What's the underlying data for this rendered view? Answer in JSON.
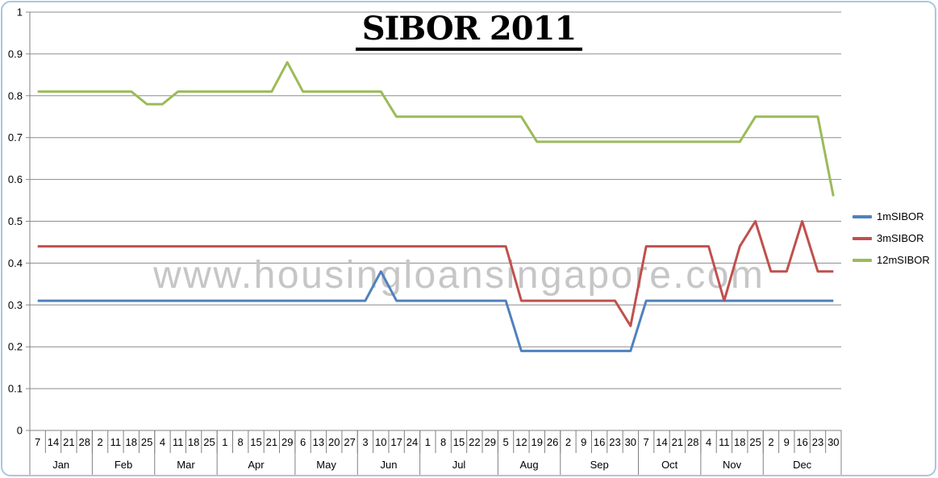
{
  "title": "SIBOR 2011",
  "watermark": "www.housingloansingapore.com",
  "colors": {
    "grid": "#8c8c8c",
    "axis": "#808080",
    "border": "#a9c6e0",
    "text": "#000000",
    "watermark": "#c6c6c6"
  },
  "chart_data": {
    "type": "line",
    "title": "SIBOR 2011",
    "xlabel": "",
    "ylabel": "",
    "ylim": [
      0,
      1
    ],
    "ytick_interval": 0.1,
    "yticks": [
      "1",
      "0.9",
      "0.8",
      "0.7",
      "0.6",
      "0.5",
      "0.4",
      "0.3",
      "0.2",
      "0.1",
      "0"
    ],
    "grid": true,
    "legend_position": "right",
    "months": [
      {
        "label": "Jan",
        "dates": [
          "7",
          "14",
          "21",
          "28"
        ]
      },
      {
        "label": "Feb",
        "dates": [
          "2",
          "11",
          "18",
          "25"
        ]
      },
      {
        "label": "Mar",
        "dates": [
          "4",
          "11",
          "18",
          "25"
        ]
      },
      {
        "label": "Apr",
        "dates": [
          "1",
          "8",
          "15",
          "21",
          "29"
        ]
      },
      {
        "label": "May",
        "dates": [
          "6",
          "13",
          "20",
          "27"
        ]
      },
      {
        "label": "Jun",
        "dates": [
          "3",
          "10",
          "17",
          "24"
        ]
      },
      {
        "label": "Jul",
        "dates": [
          "1",
          "8",
          "15",
          "22",
          "29"
        ]
      },
      {
        "label": "Aug",
        "dates": [
          "5",
          "12",
          "19",
          "26"
        ]
      },
      {
        "label": "Sep",
        "dates": [
          "2",
          "9",
          "16",
          "23",
          "30"
        ]
      },
      {
        "label": "Oct",
        "dates": [
          "7",
          "14",
          "21",
          "28"
        ]
      },
      {
        "label": "Nov",
        "dates": [
          "4",
          "11",
          "18",
          "25"
        ]
      },
      {
        "label": "Dec",
        "dates": [
          "2",
          "9",
          "16",
          "23",
          "30"
        ]
      }
    ],
    "series": [
      {
        "name": "1mSIBOR",
        "color": "#4F81BD",
        "values": [
          0.31,
          0.31,
          0.31,
          0.31,
          0.31,
          0.31,
          0.31,
          0.31,
          0.31,
          0.31,
          0.31,
          0.31,
          0.31,
          0.31,
          0.31,
          0.31,
          0.31,
          0.31,
          0.31,
          0.31,
          0.31,
          0.31,
          0.38,
          0.31,
          0.31,
          0.31,
          0.31,
          0.31,
          0.31,
          0.31,
          0.31,
          0.19,
          0.19,
          0.19,
          0.19,
          0.19,
          0.19,
          0.19,
          0.19,
          0.31,
          0.31,
          0.31,
          0.31,
          0.31,
          0.31,
          0.31,
          0.31,
          0.31,
          0.31,
          0.31,
          0.31,
          0.31
        ]
      },
      {
        "name": "3mSIBOR",
        "color": "#C0504D",
        "values": [
          0.44,
          0.44,
          0.44,
          0.44,
          0.44,
          0.44,
          0.44,
          0.44,
          0.44,
          0.44,
          0.44,
          0.44,
          0.44,
          0.44,
          0.44,
          0.44,
          0.44,
          0.44,
          0.44,
          0.44,
          0.44,
          0.44,
          0.44,
          0.44,
          0.44,
          0.44,
          0.44,
          0.44,
          0.44,
          0.44,
          0.44,
          0.31,
          0.31,
          0.31,
          0.31,
          0.31,
          0.31,
          0.31,
          0.25,
          0.44,
          0.44,
          0.44,
          0.44,
          0.44,
          0.31,
          0.44,
          0.5,
          0.38,
          0.38,
          0.5,
          0.38,
          0.38
        ]
      },
      {
        "name": "12mSIBOR",
        "color": "#9BBB59",
        "values": [
          0.81,
          0.81,
          0.81,
          0.81,
          0.81,
          0.81,
          0.81,
          0.78,
          0.78,
          0.81,
          0.81,
          0.81,
          0.81,
          0.81,
          0.81,
          0.81,
          0.88,
          0.81,
          0.81,
          0.81,
          0.81,
          0.81,
          0.81,
          0.75,
          0.75,
          0.75,
          0.75,
          0.75,
          0.75,
          0.75,
          0.75,
          0.75,
          0.69,
          0.69,
          0.69,
          0.69,
          0.69,
          0.69,
          0.69,
          0.69,
          0.69,
          0.69,
          0.69,
          0.69,
          0.69,
          0.69,
          0.75,
          0.75,
          0.75,
          0.75,
          0.75,
          0.56
        ]
      }
    ]
  }
}
